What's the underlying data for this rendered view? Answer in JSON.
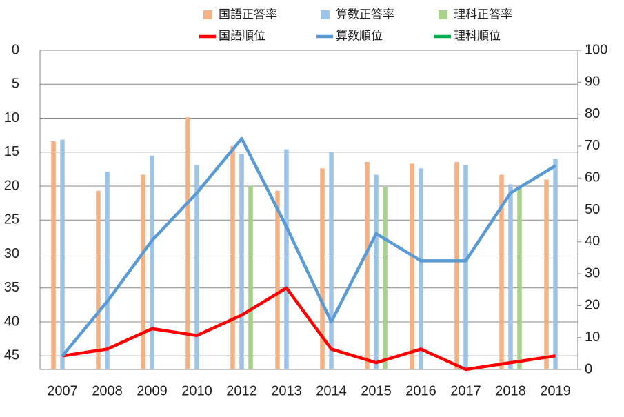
{
  "chart_data": {
    "type": "combo",
    "categories": [
      "2007",
      "2008",
      "2009",
      "2010",
      "2012",
      "2013",
      "2014",
      "2015",
      "2016",
      "2017",
      "2018",
      "2019"
    ],
    "series": [
      {
        "name": "国語正答率",
        "type": "bar",
        "axis": "y2",
        "color": "#f4b183",
        "values": [
          71.5,
          56,
          61,
          79,
          70,
          56,
          63,
          65,
          64.5,
          65,
          61,
          59.5
        ]
      },
      {
        "name": "算数正答率",
        "type": "bar",
        "axis": "y2",
        "color": "#9dc3e6",
        "values": [
          72,
          62,
          67,
          64,
          67.5,
          69,
          68,
          61,
          63,
          64,
          58,
          66
        ]
      },
      {
        "name": "理科正答率",
        "type": "bar",
        "axis": "y2",
        "color": "#a9d18e",
        "values": [
          null,
          null,
          null,
          null,
          57.5,
          null,
          null,
          57,
          null,
          null,
          57,
          null
        ]
      },
      {
        "name": "国語順位",
        "type": "line",
        "color": "#ff0000",
        "values": [
          45,
          44,
          41,
          42,
          39,
          35,
          44,
          46,
          44,
          47,
          46,
          45
        ]
      },
      {
        "name": "算数順位",
        "type": "line",
        "color": "#5b9bd5",
        "values": [
          45,
          37,
          28,
          21,
          13,
          26,
          40,
          27,
          31,
          31,
          21,
          17
        ]
      },
      {
        "name": "理科順位",
        "type": "line",
        "color": "#00b050",
        "values": [
          null,
          null,
          null,
          null,
          null,
          null,
          null,
          null,
          null,
          null,
          null,
          null
        ]
      }
    ],
    "ylim": [
      0,
      47
    ],
    "y_reversed": true,
    "yticks": [
      0,
      5,
      10,
      15,
      20,
      25,
      30,
      35,
      40,
      45
    ],
    "y2lim": [
      0,
      100
    ],
    "y2ticks": [
      0,
      10,
      20,
      30,
      40,
      50,
      60,
      70,
      80,
      90,
      100
    ],
    "grid": true,
    "legend": "top"
  }
}
